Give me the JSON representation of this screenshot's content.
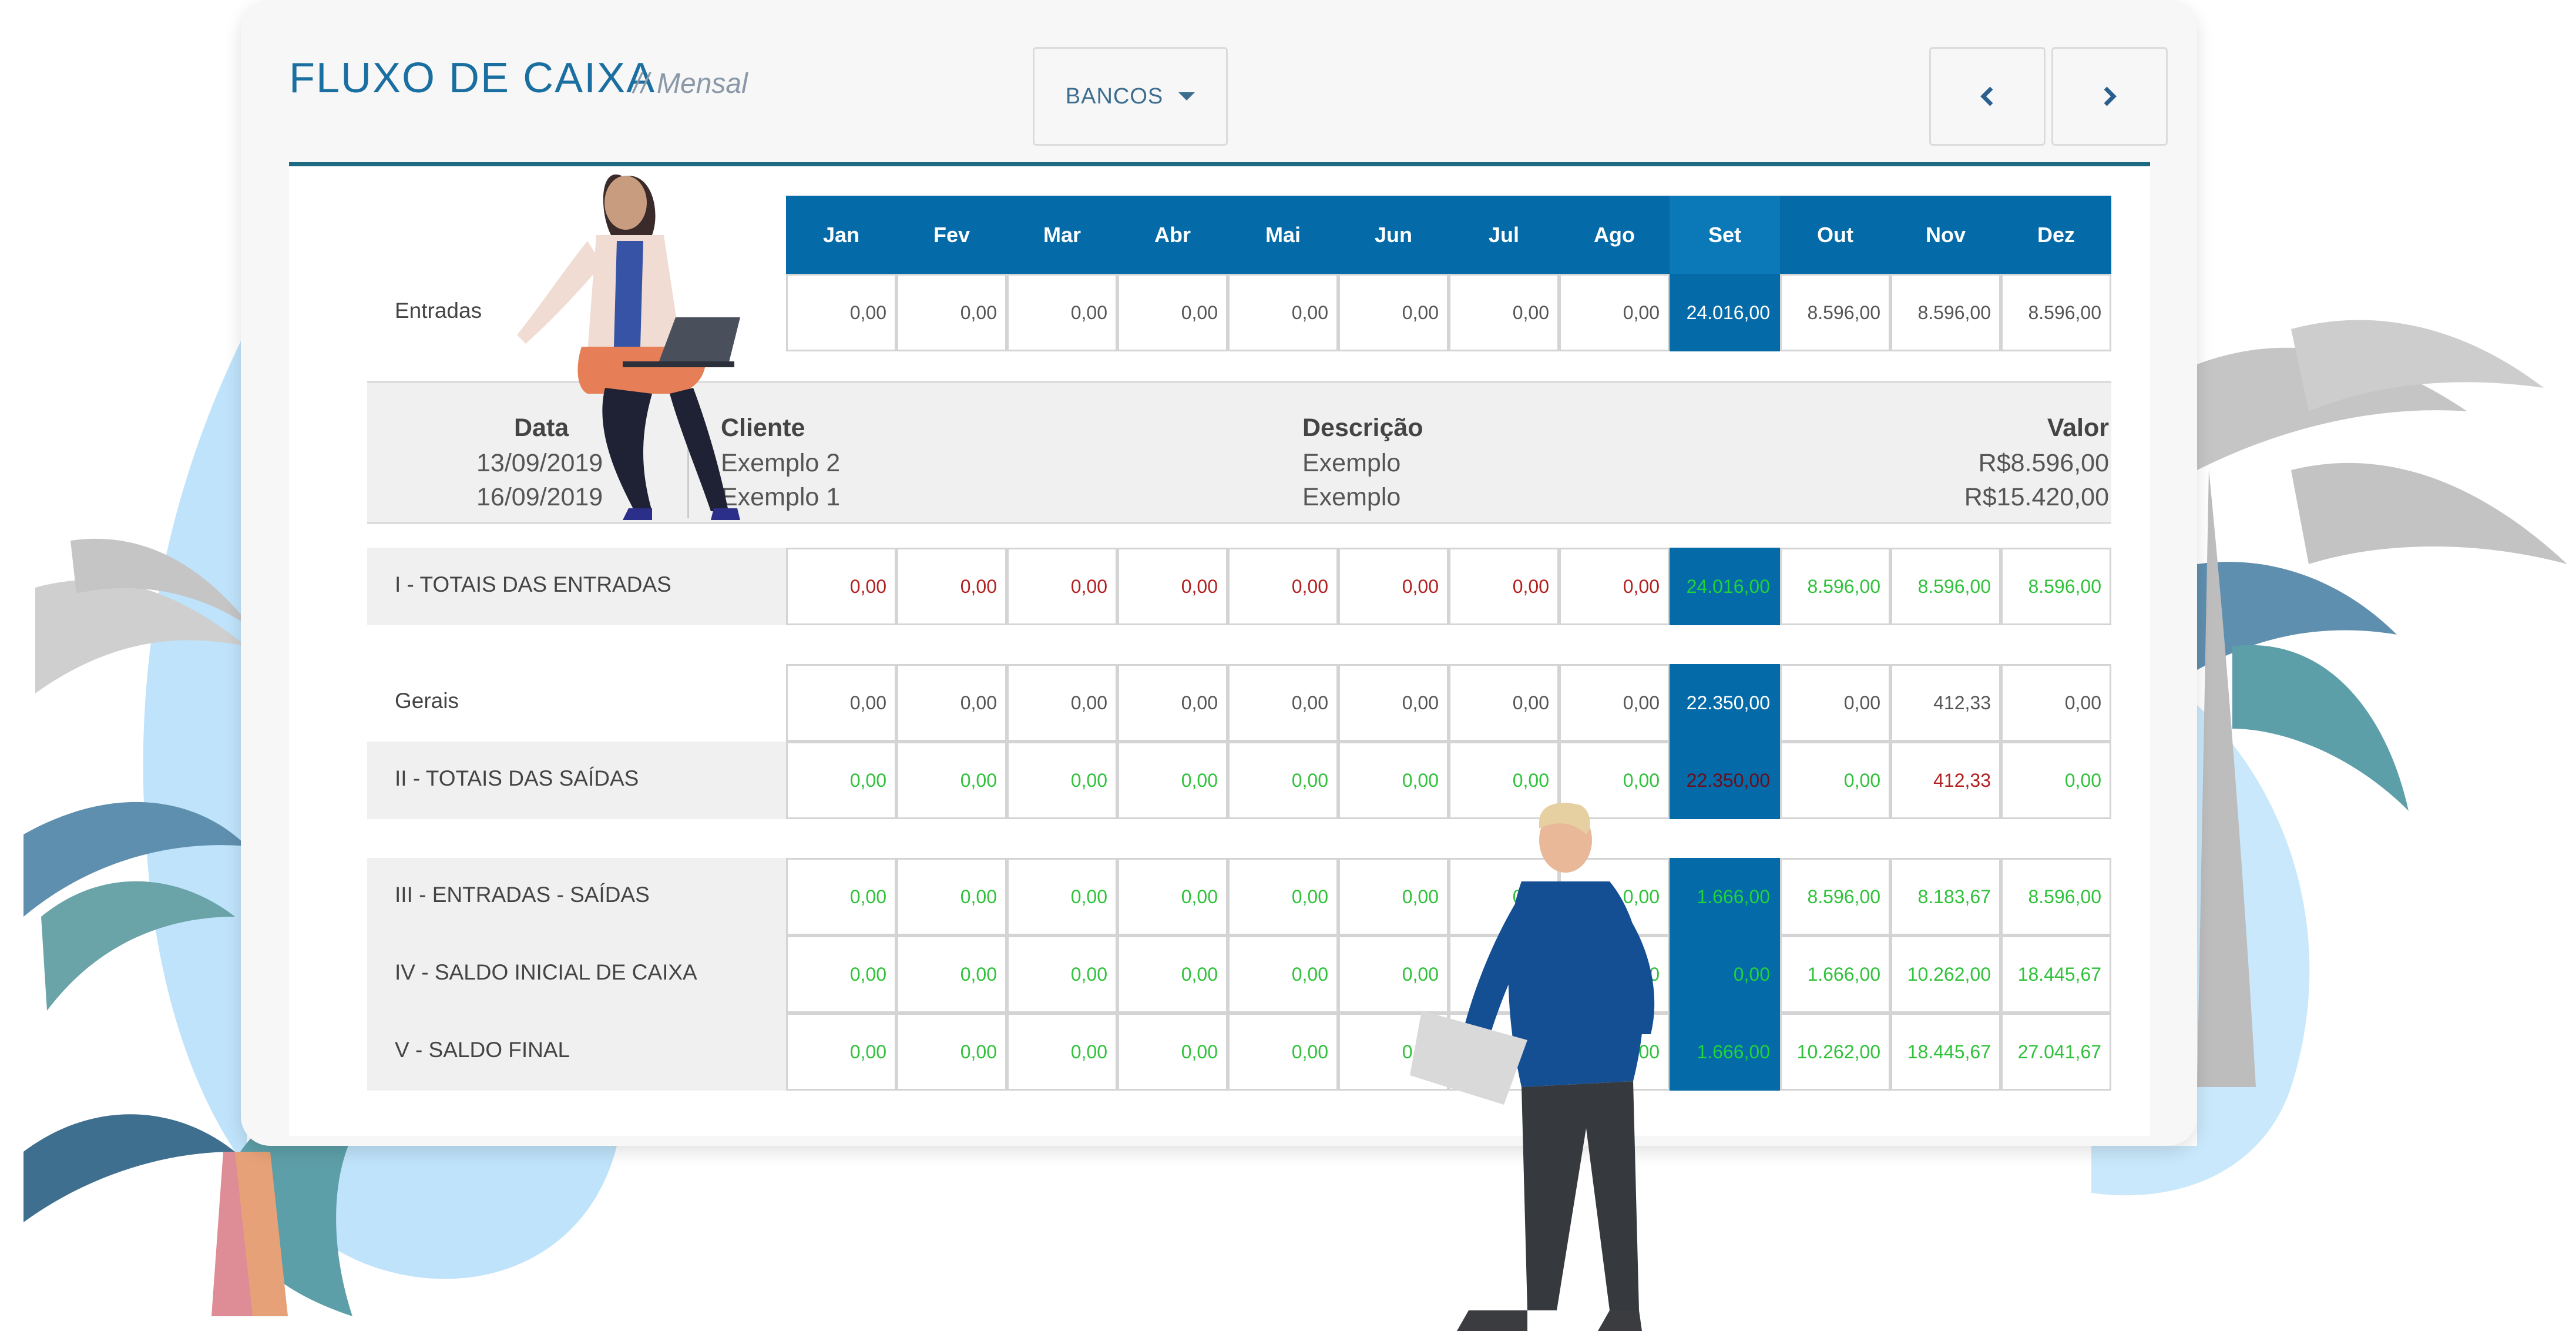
{
  "header": {
    "title": "FLUXO DE CAIXA",
    "subtitle": "// Mensal",
    "bancos_label": "BANCOS"
  },
  "months": [
    "Jan",
    "Fev",
    "Mar",
    "Abr",
    "Mai",
    "Jun",
    "Jul",
    "Ago",
    "Set",
    "Out",
    "Nov",
    "Dez"
  ],
  "selected_month_index": 8,
  "entradas": {
    "label": "Entradas",
    "values": [
      "0,00",
      "0,00",
      "0,00",
      "0,00",
      "0,00",
      "0,00",
      "0,00",
      "0,00",
      "24.016,00",
      "8.596,00",
      "8.596,00",
      "8.596,00"
    ]
  },
  "detail": {
    "headers": {
      "data": "Data",
      "cliente": "Cliente",
      "descricao": "Descrição",
      "valor": "Valor"
    },
    "rows": [
      {
        "data": "13/09/2019",
        "cliente": "Exemplo 2",
        "descricao": "Exemplo",
        "valor": "R$8.596,00"
      },
      {
        "data": "16/09/2019",
        "cliente": "Exemplo 1",
        "descricao": "Exemplo",
        "valor": "R$15.420,00"
      }
    ]
  },
  "totais_entradas": {
    "label": "I - TOTAIS DAS ENTRADAS",
    "values": [
      "0,00",
      "0,00",
      "0,00",
      "0,00",
      "0,00",
      "0,00",
      "0,00",
      "0,00",
      "24.016,00",
      "8.596,00",
      "8.596,00",
      "8.596,00"
    ],
    "status": [
      "neg",
      "neg",
      "neg",
      "neg",
      "neg",
      "neg",
      "neg",
      "neg",
      "pos",
      "pos",
      "pos",
      "pos"
    ]
  },
  "gerais": {
    "label": "Gerais",
    "values": [
      "0,00",
      "0,00",
      "0,00",
      "0,00",
      "0,00",
      "0,00",
      "0,00",
      "0,00",
      "22.350,00",
      "0,00",
      "412,33",
      "0,00"
    ]
  },
  "totais_saidas": {
    "label": "II - TOTAIS DAS SAÍDAS",
    "values": [
      "0,00",
      "0,00",
      "0,00",
      "0,00",
      "0,00",
      "0,00",
      "0,00",
      "0,00",
      "22.350,00",
      "0,00",
      "412,33",
      "0,00"
    ],
    "status": [
      "pos",
      "pos",
      "pos",
      "pos",
      "pos",
      "pos",
      "pos",
      "pos",
      "neg",
      "pos",
      "neg",
      "pos"
    ]
  },
  "entradas_saidas": {
    "label": "III - ENTRADAS - SAÍDAS",
    "values": [
      "0,00",
      "0,00",
      "0,00",
      "0,00",
      "0,00",
      "0,00",
      "0,00",
      "0,00",
      "1.666,00",
      "8.596,00",
      "8.183,67",
      "8.596,00"
    ],
    "status": [
      "pos",
      "pos",
      "pos",
      "pos",
      "pos",
      "pos",
      "pos",
      "pos",
      "pos",
      "pos",
      "pos",
      "pos"
    ]
  },
  "saldo_inicial": {
    "label": "IV - SALDO INICIAL DE CAIXA",
    "values": [
      "0,00",
      "0,00",
      "0,00",
      "0,00",
      "0,00",
      "0,00",
      "0,00",
      "0,00",
      "0,00",
      "1.666,00",
      "10.262,00",
      "18.445,67"
    ],
    "status": [
      "pos",
      "pos",
      "pos",
      "pos",
      "pos",
      "pos",
      "pos",
      "pos",
      "pos",
      "pos",
      "pos",
      "pos"
    ]
  },
  "saldo_final": {
    "label": "V - SALDO FINAL",
    "values": [
      "0,00",
      "0,00",
      "0,00",
      "0,00",
      "0,00",
      "0,00",
      "0,00",
      "0,00",
      "1.666,00",
      "10.262,00",
      "18.445,67",
      "27.041,67"
    ],
    "status": [
      "pos",
      "pos",
      "pos",
      "pos",
      "pos",
      "pos",
      "pos",
      "pos",
      "pos",
      "pos",
      "pos",
      "pos"
    ]
  },
  "colors": {
    "header_blue": "#046aa8",
    "title_blue": "#1b6fa0",
    "positive_green": "#2fc23a",
    "negative_red": "#b32020"
  }
}
